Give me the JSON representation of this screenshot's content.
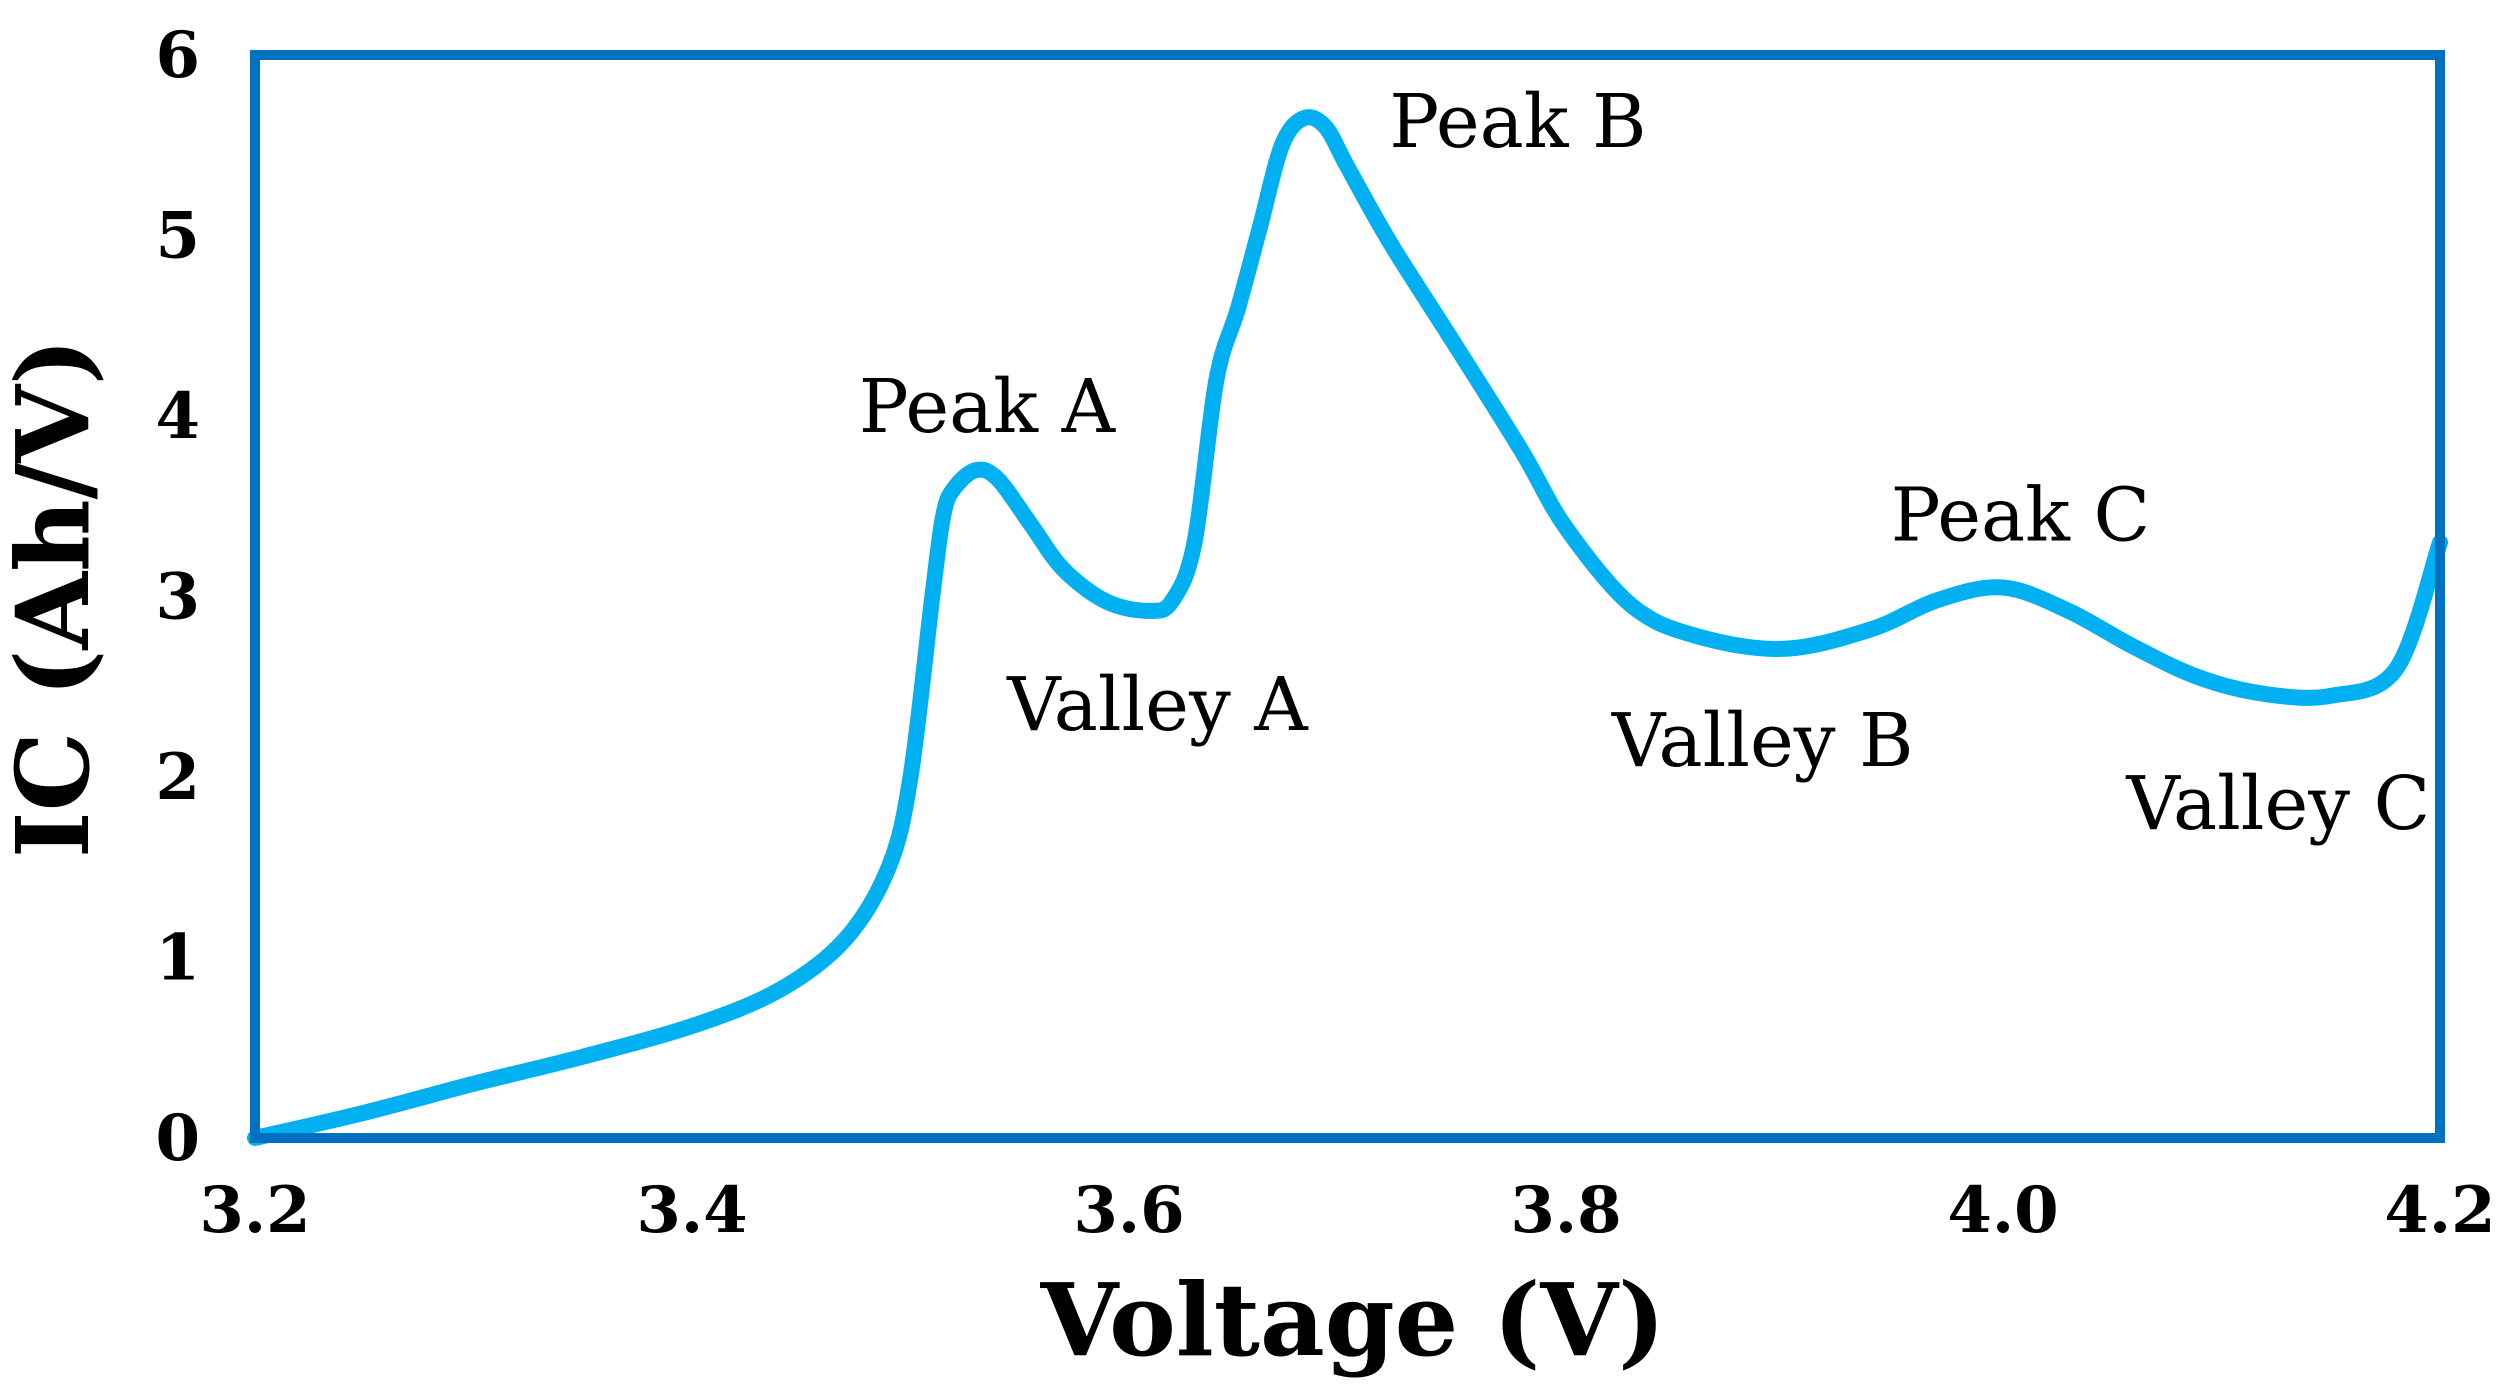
{
  "chart_data": {
    "type": "line",
    "title": "",
    "xlabel": "Voltage (V)",
    "ylabel": "IC (Ah/V)",
    "xlim": [
      3.2,
      4.2
    ],
    "ylim": [
      0,
      6
    ],
    "x_ticks": [
      "3.2",
      "3.4",
      "3.6",
      "3.8",
      "4.0",
      "4.2"
    ],
    "y_ticks": [
      "0",
      "1",
      "2",
      "3",
      "4",
      "5",
      "6"
    ],
    "grid": false,
    "legend": "none",
    "colors": {
      "line": "#00B0F0",
      "frame": "#0070C0",
      "text": "#000000"
    },
    "series": [
      {
        "x": [
          3.2,
          3.25,
          3.3,
          3.35,
          3.4,
          3.44,
          3.47,
          3.49,
          3.5,
          3.51,
          3.515,
          3.52,
          3.53,
          3.54,
          3.555,
          3.57,
          3.59,
          3.61,
          3.62,
          3.63,
          3.64,
          3.65,
          3.66,
          3.67,
          3.68,
          3.69,
          3.7,
          3.72,
          3.75,
          3.78,
          3.8,
          3.83,
          3.86,
          3.9,
          3.94,
          3.97,
          4.0,
          4.03,
          4.06,
          4.09,
          4.12,
          4.15,
          4.18,
          4.2
        ],
        "y": [
          0.0,
          0.14,
          0.3,
          0.45,
          0.62,
          0.82,
          1.1,
          1.5,
          2.0,
          3.0,
          3.45,
          3.6,
          3.7,
          3.65,
          3.4,
          3.15,
          2.97,
          2.92,
          2.98,
          3.3,
          4.2,
          4.6,
          5.05,
          5.5,
          5.65,
          5.6,
          5.38,
          4.95,
          4.38,
          3.8,
          3.38,
          2.95,
          2.78,
          2.71,
          2.82,
          2.98,
          3.05,
          2.92,
          2.72,
          2.55,
          2.46,
          2.45,
          2.6,
          3.3
        ]
      }
    ],
    "annotations": [
      {
        "text": "Peak A",
        "x": 3.535,
        "y": 4.05
      },
      {
        "text": "Valley A",
        "x": 3.613,
        "y": 2.4
      },
      {
        "text": "Peak B",
        "x": 3.778,
        "y": 5.63
      },
      {
        "text": "Valley B",
        "x": 3.89,
        "y": 2.2
      },
      {
        "text": "Peak C",
        "x": 4.008,
        "y": 3.45
      },
      {
        "text": "Valley C",
        "x": 4.126,
        "y": 1.85
      }
    ]
  }
}
